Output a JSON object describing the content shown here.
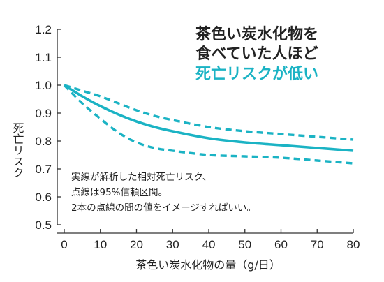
{
  "chart_data": {
    "type": "line",
    "title_lines": [
      "茶色い炭水化物を",
      "食べていた人ほど"
    ],
    "title_highlight": "死亡リスクが低い",
    "xlabel": "茶色い炭水化物の量（g/日）",
    "ylabel": "死亡リスク",
    "xlim": [
      0,
      80
    ],
    "ylim": [
      0.5,
      1.2
    ],
    "xticks": [
      0,
      10,
      20,
      30,
      40,
      50,
      60,
      70,
      80
    ],
    "yticks": [
      "0.5",
      "0.6",
      "0.7",
      "0.8",
      "0.9",
      "1.0",
      "1.1",
      "1.2"
    ],
    "grid": false,
    "accent_color": "#1bb3c4",
    "notes": [
      "実線が解析した相対死亡リスク、",
      "点線は95%信頼区間。",
      "2本の点線の間の値をイメージすればいい。"
    ],
    "series": [
      {
        "style": "solid",
        "x": [
          0,
          5,
          10,
          15,
          20,
          25,
          30,
          40,
          50,
          60,
          70,
          80
        ],
        "y": [
          1.0,
          0.96,
          0.925,
          0.895,
          0.87,
          0.85,
          0.835,
          0.81,
          0.795,
          0.785,
          0.775,
          0.765
        ]
      },
      {
        "style": "dashed",
        "x": [
          0,
          5,
          10,
          15,
          20,
          25,
          30,
          40,
          50,
          60,
          70,
          80
        ],
        "y": [
          1.0,
          0.98,
          0.96,
          0.935,
          0.91,
          0.89,
          0.875,
          0.85,
          0.835,
          0.825,
          0.815,
          0.805
        ]
      },
      {
        "style": "dashed",
        "x": [
          0,
          5,
          10,
          15,
          20,
          25,
          30,
          40,
          50,
          60,
          70,
          80
        ],
        "y": [
          1.0,
          0.935,
          0.88,
          0.83,
          0.795,
          0.775,
          0.765,
          0.75,
          0.745,
          0.74,
          0.73,
          0.72
        ]
      }
    ]
  }
}
